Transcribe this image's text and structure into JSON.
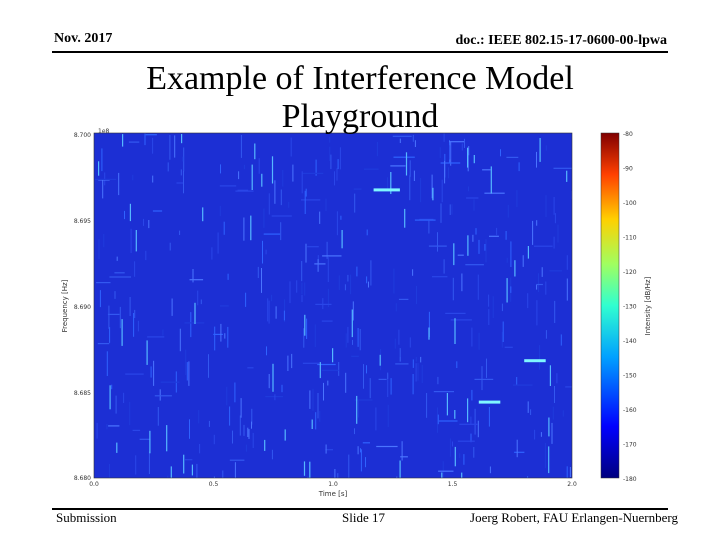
{
  "header": {
    "date": "Nov. 2017",
    "doc_id": "doc.: IEEE 802.15-17-0600-00-lpwa"
  },
  "slide": {
    "title_line1": "Example of Interference Model",
    "title_line2": "Playground"
  },
  "footer": {
    "submission": "Submission",
    "slide_number": "Slide 17",
    "author": "Joerg Robert, FAU Erlangen-Nuernberg"
  },
  "chart_data": {
    "type": "heatmap",
    "xlabel": "Time [s]",
    "ylabel": "Frequency [Hz]",
    "y_offset_label": "1e8",
    "x_ticks": [
      "0.0",
      "0.5",
      "1.0",
      "1.5",
      "2.0"
    ],
    "y_ticks": [
      "8.700",
      "8.695",
      "8.690",
      "8.685",
      "8.680"
    ],
    "xlim": [
      0.0,
      2.0
    ],
    "ylim": [
      8.68,
      8.7
    ],
    "colorbar": {
      "label": "Intensity [dB/Hz]",
      "ticks": [
        "-80",
        "-90",
        "-100",
        "-110",
        "-120",
        "-130",
        "-140",
        "-150",
        "-160",
        "-170",
        "-180"
      ],
      "range": [
        -180,
        -80
      ]
    },
    "highlighted_bursts": [
      {
        "t_start": 1.17,
        "t_end": 1.28,
        "f": 8.6967
      },
      {
        "t_start": 1.8,
        "t_end": 1.89,
        "f": 8.6868
      },
      {
        "t_start": 1.61,
        "t_end": 1.7,
        "f": 8.6844
      }
    ],
    "colors": {
      "background": "#1c2fd4",
      "burst_bright": "#7ff7ff",
      "colormap": [
        "#00007f",
        "#0000ff",
        "#00a0ff",
        "#30ffd0",
        "#a0ff60",
        "#ffd000",
        "#ff4000",
        "#800000"
      ]
    }
  }
}
